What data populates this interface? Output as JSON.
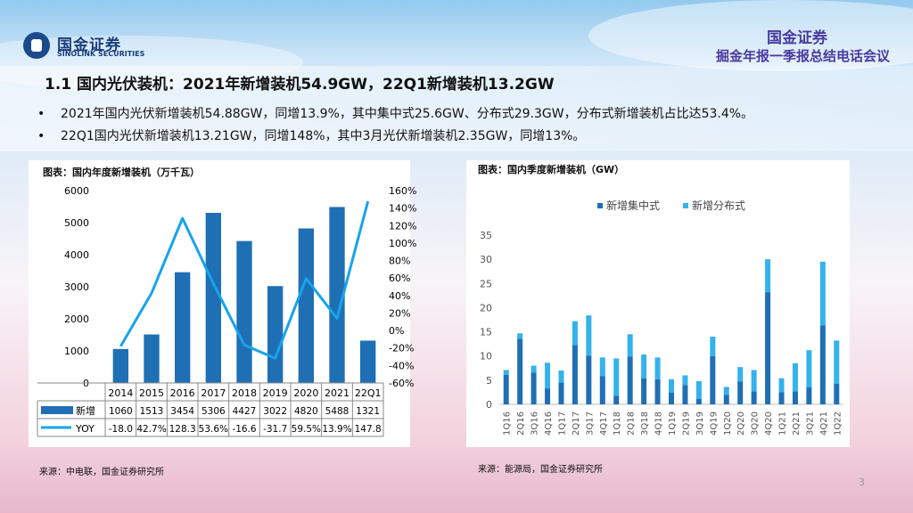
{
  "header": {
    "logo_cn": "国金证券",
    "logo_en": "SINOLINK SECURITIES",
    "brand": "国金证券",
    "meeting": "掘金年报一季报总结电话会议"
  },
  "slide": {
    "title": "1.1 国内光伏装机：2021年新增装机54.9GW，22Q1新增装机13.2GW",
    "bullets": [
      "2021年国内光伏新增装机54.88GW，同增13.9%，其中集中式25.6GW、分布式29.3GW，分布式新增装机占比达53.4%。",
      "22Q1国内光伏新增装机13.21GW，同增148%，其中3月光伏新增装机2.35GW，同增13%。"
    ],
    "bullet_mark": "•",
    "page_number": "3"
  },
  "colors": {
    "bar_dark": "#1f6fb5",
    "line_blue": "#16a4ec",
    "bar_light": "#34b2ee"
  },
  "chart_data": [
    {
      "type": "bar",
      "title": "图表：国内年度新增装机（万千瓦）",
      "source": "来源：中电联，国金证券研究所",
      "categories": [
        "2014",
        "2015",
        "2016",
        "2017",
        "2018",
        "2019",
        "2020",
        "2021",
        "22Q1"
      ],
      "series": [
        {
          "name": "新增",
          "kind": "bar",
          "axis": "left",
          "values": [
            1060,
            1513,
            3454,
            5306,
            4427,
            3022,
            4820,
            5488,
            1321
          ]
        },
        {
          "name": "YOY",
          "kind": "line",
          "axis": "right",
          "values": [
            -18.0,
            42.7,
            128.3,
            53.6,
            -16.6,
            -31.7,
            59.5,
            13.9,
            147.8
          ]
        }
      ],
      "table_labels": {
        "new": [
          "1060",
          "1513",
          "3454",
          "5306",
          "4427",
          "3022",
          "4820",
          "5488",
          "1321"
        ],
        "yoy": [
          "-18.0",
          "42.7%",
          "128.3",
          "53.6%",
          "-16.6",
          "-31.7",
          "59.5%",
          "13.9%",
          "147.8"
        ]
      },
      "ylim_left": [
        0,
        6000
      ],
      "yticks_left": [
        "0",
        "1000",
        "2000",
        "3000",
        "4000",
        "5000",
        "6000"
      ],
      "ylim_right": [
        -60,
        160
      ],
      "yticks_right": [
        "-60%",
        "-40%",
        "-20%",
        "0%",
        "20%",
        "40%",
        "60%",
        "80%",
        "100%",
        "120%",
        "140%",
        "160%"
      ]
    },
    {
      "type": "bar",
      "stacked": true,
      "title": "图表：国内季度新增装机（GW）",
      "source": "来源：能源局，国金证券研究所",
      "categories": [
        "1Q16",
        "2Q16",
        "3Q16",
        "4Q16",
        "1Q17",
        "2Q17",
        "3Q17",
        "4Q17",
        "1Q18",
        "2Q18",
        "3Q18",
        "4Q18",
        "1Q19",
        "2Q19",
        "3Q19",
        "4Q19",
        "1Q20",
        "2Q20",
        "3Q20",
        "4Q20",
        "1Q21",
        "2Q21",
        "3Q21",
        "4Q21",
        "1Q22"
      ],
      "series": [
        {
          "name": "新增集中式",
          "values": [
            6.1,
            13.6,
            6.6,
            3.3,
            4.5,
            12.3,
            10.1,
            5.8,
            1.8,
            9.9,
            5.4,
            5.2,
            2.4,
            4.0,
            1.1,
            10.0,
            2.0,
            4.7,
            2.7,
            23.2,
            2.5,
            2.7,
            3.5,
            16.3,
            4.3
          ]
        },
        {
          "name": "新增分布式",
          "values": [
            1.0,
            1.1,
            1.4,
            5.3,
            2.5,
            4.9,
            8.3,
            3.9,
            7.7,
            4.6,
            4.9,
            4.5,
            2.8,
            2.0,
            3.7,
            4.0,
            1.6,
            3.0,
            4.4,
            6.8,
            2.9,
            5.8,
            7.7,
            13.2,
            8.9
          ]
        }
      ],
      "ylim": [
        0,
        35
      ],
      "yticks": [
        "0",
        "5",
        "10",
        "15",
        "20",
        "25",
        "30",
        "35"
      ]
    }
  ]
}
